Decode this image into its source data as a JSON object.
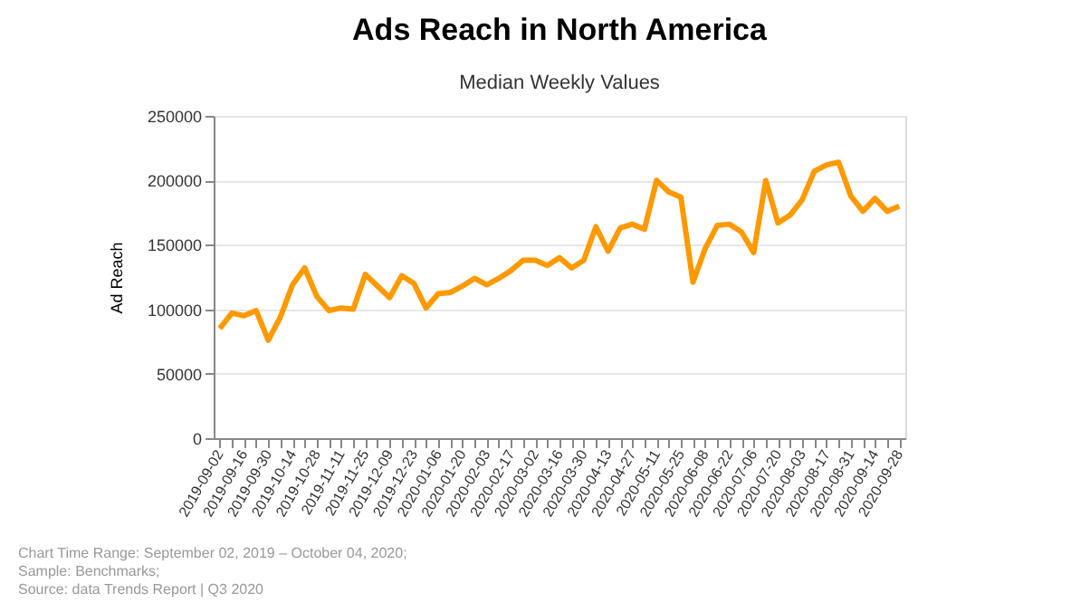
{
  "chart_data": {
    "type": "line",
    "title": "Ads Reach in North America",
    "subtitle": "Median Weekly Values",
    "ylabel": "Ad Reach",
    "categories": [
      "2019-09-02",
      null,
      "2019-09-16",
      null,
      "2019-09-30",
      null,
      "2019-10-14",
      null,
      "2019-10-28",
      null,
      "2019-11-11",
      null,
      "2019-11-25",
      null,
      "2019-12-09",
      null,
      "2019-12-23",
      null,
      "2020-01-06",
      null,
      "2020-01-20",
      null,
      "2020-02-03",
      null,
      "2020-02-17",
      null,
      "2020-03-02",
      null,
      "2020-03-16",
      null,
      "2020-03-30",
      null,
      "2020-04-13",
      null,
      "2020-04-27",
      null,
      "2020-05-11",
      null,
      "2020-05-25",
      null,
      "2020-06-08",
      null,
      "2020-06-22",
      null,
      "2020-07-06",
      null,
      "2020-07-20",
      null,
      "2020-08-03",
      null,
      "2020-08-17",
      null,
      "2020-08-31",
      null,
      "2020-09-14",
      null,
      "2020-09-28"
    ],
    "series": [
      {
        "color": "#ff9900",
        "values": [
          85000,
          97000,
          95000,
          99000,
          76000,
          94000,
          119000,
          132000,
          110000,
          99000,
          101000,
          100000,
          127000,
          118000,
          109000,
          126000,
          120000,
          101000,
          112000,
          113000,
          118000,
          124000,
          119000,
          124000,
          130000,
          138000,
          138000,
          134000,
          140000,
          132000,
          138000,
          164000,
          145000,
          163000,
          166000,
          162000,
          200000,
          191000,
          187000,
          121000,
          147000,
          165000,
          166000,
          160000,
          144000,
          200000,
          167000,
          173000,
          185000,
          207000,
          212000,
          214000,
          188000,
          176000,
          186000,
          176000,
          180000
        ]
      }
    ],
    "ylim": [
      0,
      250000
    ],
    "yticks": [
      0,
      50000,
      100000,
      150000,
      200000,
      250000
    ],
    "grid": "y",
    "marker": "none",
    "line_style": "solid",
    "annotations": [
      "Chart Time Range: September 02, 2019 – October 04, 2020;",
      "Sample: Benchmarks;",
      "Source: data Trends Report | Q3 2020"
    ]
  }
}
